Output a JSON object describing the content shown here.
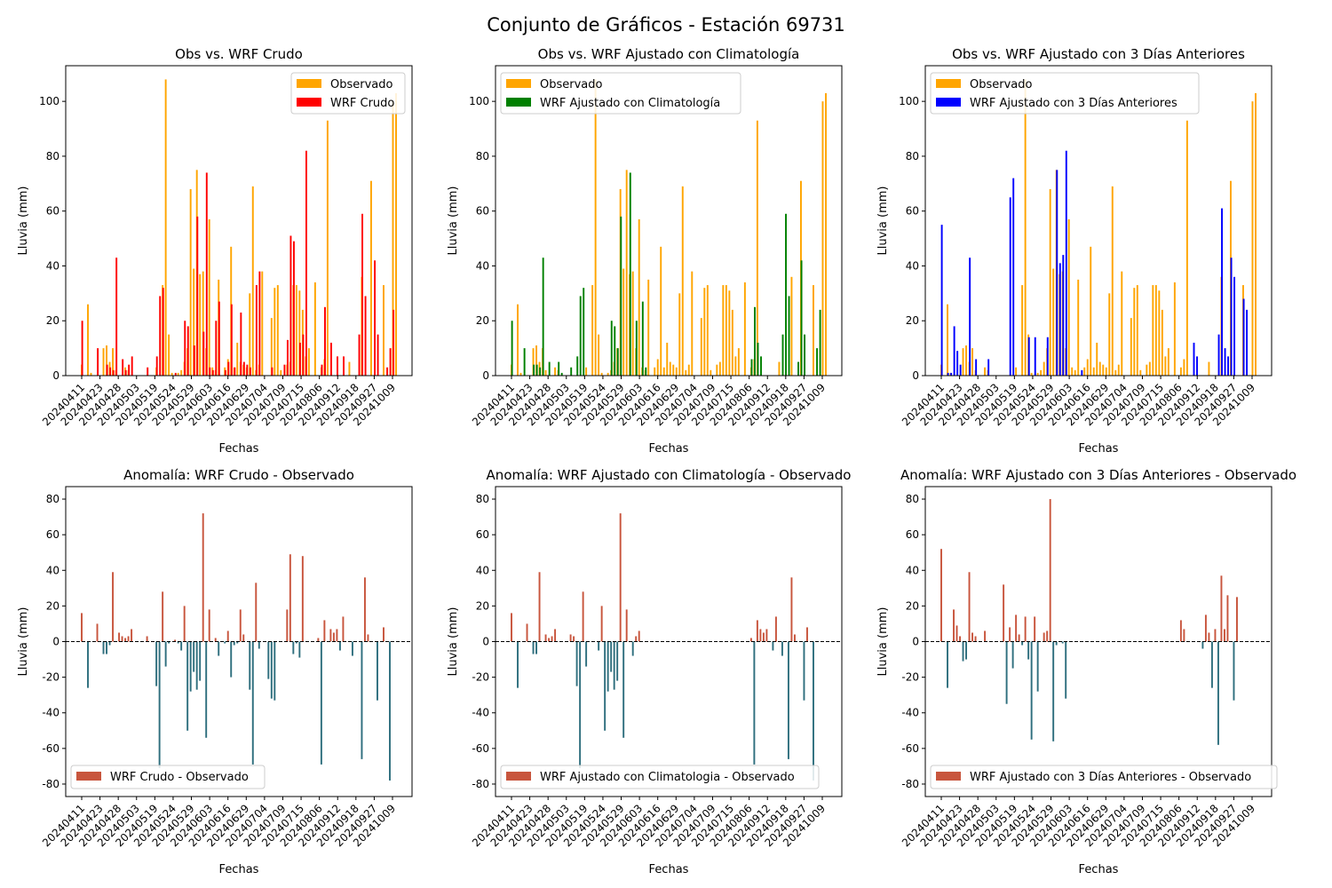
{
  "suptitle": "Conjunto de Gráficos - Estación 69731",
  "colors": {
    "observado": "#FFA500",
    "wrf_crudo": "#FF0000",
    "wrf_clima": "#008000",
    "wrf_3dias": "#0000FF",
    "anomaly_pos": "#C8553D",
    "anomaly_neg": "#2F6F7E",
    "zero_line": "#000000"
  },
  "date_ticks": [
    "20240411",
    "20240423",
    "20240428",
    "20240503",
    "20240519",
    "20240524",
    "20240529",
    "20240603",
    "20240616",
    "20240629",
    "20240704",
    "20240709",
    "20240715",
    "20240806",
    "20240912",
    "20240918",
    "20240927",
    "20241009"
  ],
  "chart_data": [
    {
      "type": "bar",
      "title": "Obs vs. WRF Crudo",
      "xlabel": "Fechas",
      "ylabel": "Lluvia (mm)",
      "ylim": [
        0,
        113
      ],
      "yticks": [
        0,
        20,
        40,
        60,
        80,
        100
      ],
      "legend": "top-right",
      "series": [
        {
          "name": "Observado",
          "color_key": "observado",
          "values": [
            4,
            0,
            26,
            1,
            0,
            0,
            0,
            10,
            11,
            5,
            10,
            2,
            0,
            0,
            3,
            2,
            0,
            0,
            0,
            0,
            0,
            0,
            0,
            0,
            3,
            0,
            33,
            108,
            15,
            1,
            0,
            1,
            2,
            5,
            10,
            68,
            39,
            75,
            37,
            38,
            10,
            57,
            3,
            2,
            35,
            0,
            3,
            6,
            47,
            3,
            12,
            5,
            4,
            3,
            30,
            69,
            2,
            4,
            38,
            0,
            0,
            21,
            32,
            33,
            2,
            0,
            4,
            5,
            33,
            33,
            31,
            24,
            7,
            10,
            0,
            34,
            0,
            3,
            6,
            93,
            0,
            0,
            0,
            0,
            0,
            0,
            5,
            0,
            0,
            0,
            36,
            0,
            0,
            71,
            0,
            0,
            0,
            33,
            0,
            0,
            100,
            103
          ]
        },
        {
          "name": "WRF Crudo",
          "color_key": "wrf_crudo",
          "values": [
            20,
            0,
            0,
            0,
            0,
            10,
            0,
            0,
            4,
            3,
            2,
            43,
            0,
            6,
            2,
            4,
            7,
            0,
            0,
            0,
            0,
            3,
            0,
            0,
            7,
            29,
            32,
            0,
            0,
            0,
            1,
            0,
            0,
            20,
            18,
            0,
            11,
            58,
            0,
            16,
            74,
            3,
            2,
            20,
            27,
            0,
            2,
            5,
            26,
            3,
            0,
            23,
            5,
            4,
            3,
            0,
            33,
            38,
            0,
            0,
            0,
            3,
            0,
            0,
            0,
            4,
            13,
            51,
            49,
            0,
            12,
            15,
            82,
            0,
            0,
            0,
            0,
            4,
            25,
            0,
            12,
            0,
            7,
            0,
            7,
            0,
            0,
            0,
            0,
            15,
            59,
            29,
            0,
            0,
            42,
            15,
            0,
            0,
            3,
            10,
            24,
            0
          ]
        }
      ]
    },
    {
      "type": "bar",
      "title": "Obs vs. WRF Ajustado con Climatología",
      "xlabel": "Fechas",
      "ylabel": "Lluvia (mm)",
      "ylim": [
        0,
        113
      ],
      "yticks": [
        0,
        20,
        40,
        60,
        80,
        100
      ],
      "legend": "top-left",
      "series": [
        {
          "name": "Observado",
          "color_key": "observado",
          "values": [
            4,
            0,
            26,
            1,
            0,
            0,
            0,
            10,
            11,
            5,
            10,
            2,
            0,
            0,
            3,
            2,
            0,
            0,
            0,
            0,
            0,
            0,
            0,
            0,
            3,
            0,
            33,
            108,
            15,
            1,
            0,
            1,
            2,
            5,
            10,
            68,
            39,
            75,
            37,
            38,
            10,
            57,
            3,
            2,
            35,
            0,
            3,
            6,
            47,
            3,
            12,
            5,
            4,
            3,
            30,
            69,
            2,
            4,
            38,
            0,
            0,
            21,
            32,
            33,
            2,
            0,
            4,
            5,
            33,
            33,
            31,
            24,
            7,
            10,
            0,
            34,
            0,
            3,
            6,
            93,
            0,
            0,
            0,
            0,
            0,
            0,
            5,
            0,
            0,
            0,
            36,
            0,
            0,
            71,
            0,
            0,
            0,
            33,
            0,
            0,
            100,
            103
          ]
        },
        {
          "name": "WRF Ajustado con Climatología",
          "color_key": "wrf_clima",
          "values": [
            20,
            0,
            0,
            0,
            10,
            0,
            0,
            4,
            4,
            3,
            43,
            0,
            5,
            0,
            0,
            5,
            1,
            0,
            0,
            3,
            0,
            7,
            29,
            32,
            0,
            0,
            0,
            0,
            0,
            0,
            0,
            0,
            20,
            18,
            10,
            58,
            0,
            0,
            74,
            0,
            20,
            0,
            27,
            3,
            0,
            0,
            0,
            0,
            0,
            0,
            0,
            0,
            0,
            0,
            0,
            0,
            0,
            0,
            0,
            0,
            0,
            0,
            0,
            0,
            0,
            0,
            0,
            0,
            0,
            0,
            0,
            0,
            0,
            0,
            0,
            0,
            0,
            6,
            25,
            12,
            7,
            0,
            0,
            0,
            0,
            0,
            0,
            15,
            59,
            29,
            0,
            0,
            5,
            42,
            15,
            0,
            0,
            0,
            10,
            24,
            0,
            0
          ]
        }
      ]
    },
    {
      "type": "bar",
      "title": "Obs vs. WRF Ajustado con 3 Días Anteriores",
      "xlabel": "Fechas",
      "ylabel": "Lluvia (mm)",
      "ylim": [
        0,
        113
      ],
      "yticks": [
        0,
        20,
        40,
        60,
        80,
        100
      ],
      "legend": "top-left",
      "series": [
        {
          "name": "Observado",
          "color_key": "observado",
          "values": [
            4,
            0,
            26,
            1,
            0,
            0,
            0,
            10,
            11,
            5,
            10,
            2,
            0,
            0,
            3,
            2,
            0,
            0,
            0,
            0,
            0,
            0,
            0,
            0,
            3,
            0,
            33,
            108,
            15,
            1,
            0,
            1,
            2,
            5,
            10,
            68,
            39,
            75,
            37,
            38,
            10,
            57,
            3,
            2,
            35,
            0,
            3,
            6,
            47,
            3,
            12,
            5,
            4,
            3,
            30,
            69,
            2,
            4,
            38,
            0,
            0,
            21,
            32,
            33,
            2,
            0,
            4,
            5,
            33,
            33,
            31,
            24,
            7,
            10,
            0,
            34,
            0,
            3,
            6,
            93,
            0,
            0,
            0,
            0,
            0,
            0,
            5,
            0,
            0,
            0,
            36,
            0,
            0,
            71,
            0,
            0,
            0,
            33,
            0,
            0,
            100,
            103
          ]
        },
        {
          "name": "WRF Ajustado con 3 Días Anteriores",
          "color_key": "wrf_3dias",
          "values": [
            55,
            0,
            1,
            1,
            18,
            9,
            4,
            0,
            0,
            43,
            0,
            6,
            0,
            0,
            0,
            6,
            0,
            0,
            0,
            0,
            0,
            0,
            65,
            72,
            0,
            0,
            0,
            0,
            14,
            0,
            14,
            0,
            0,
            0,
            14,
            0,
            0,
            75,
            41,
            44,
            82,
            0,
            0,
            0,
            0,
            2,
            0,
            0,
            0,
            0,
            0,
            0,
            0,
            0,
            0,
            0,
            0,
            0,
            0,
            0,
            0,
            0,
            0,
            0,
            0,
            0,
            0,
            0,
            0,
            0,
            0,
            0,
            0,
            0,
            0,
            0,
            0,
            0,
            0,
            0,
            0,
            12,
            7,
            0,
            0,
            0,
            0,
            0,
            0,
            15,
            61,
            10,
            7,
            43,
            36,
            0,
            0,
            28,
            24,
            0,
            0,
            0
          ]
        }
      ]
    },
    {
      "type": "bar",
      "title": "Anomalía: WRF Crudo - Observado",
      "xlabel": "Fechas",
      "ylabel": "Lluvia (mm)",
      "ylim": [
        -87,
        87
      ],
      "yticks": [
        -80,
        -60,
        -40,
        -20,
        0,
        20,
        40,
        60,
        80
      ],
      "legend": "bottom-left",
      "series": [
        {
          "name": "WRF Crudo - Observado",
          "color_key": "anomaly_pos",
          "values": [
            16,
            0,
            -26,
            0,
            0,
            10,
            0,
            -7,
            -7,
            -2,
            39,
            0,
            5,
            3,
            2,
            3,
            7,
            0,
            0,
            0,
            0,
            3,
            0,
            0,
            -25,
            -71,
            28,
            -14,
            -1,
            0,
            1,
            -1,
            -5,
            20,
            -50,
            -28,
            -17,
            -27,
            -22,
            72,
            -54,
            18,
            0,
            2,
            -8,
            0,
            -1,
            6,
            -20,
            -2,
            -1,
            18,
            4,
            0,
            -27,
            -69,
            33,
            -4,
            0,
            0,
            -21,
            -32,
            -33,
            0,
            0,
            0,
            18,
            49,
            -7,
            -1,
            -9,
            48,
            0,
            0,
            0,
            0,
            2,
            -69,
            12,
            0,
            7,
            5,
            7,
            -5,
            14,
            0,
            0,
            -8,
            0,
            0,
            -66,
            36,
            4,
            0,
            0,
            -33,
            0,
            8,
            0,
            -78,
            0,
            0
          ]
        }
      ]
    },
    {
      "type": "bar",
      "title": "Anomalía: WRF Ajustado con Climatología - Observado",
      "xlabel": "Fechas",
      "ylabel": "Lluvia (mm)",
      "ylim": [
        -87,
        87
      ],
      "yticks": [
        -80,
        -60,
        -40,
        -20,
        0,
        20,
        40,
        60,
        80
      ],
      "legend": "bottom-left",
      "series": [
        {
          "name": "WRF Ajustado con Climatologia - Observado",
          "color_key": "anomaly_pos",
          "values": [
            16,
            0,
            -26,
            0,
            0,
            10,
            0,
            -7,
            -7,
            39,
            0,
            4,
            2,
            3,
            7,
            0,
            0,
            0,
            0,
            4,
            3,
            -25,
            -71,
            28,
            -14,
            0,
            0,
            0,
            -5,
            20,
            -50,
            -28,
            -17,
            -27,
            -22,
            72,
            -54,
            18,
            0,
            -8,
            3,
            6,
            0,
            0,
            0,
            0,
            0,
            0,
            0,
            0,
            0,
            0,
            0,
            0,
            0,
            0,
            0,
            0,
            0,
            0,
            0,
            0,
            0,
            0,
            0,
            0,
            0,
            0,
            0,
            0,
            0,
            0,
            0,
            0,
            0,
            0,
            0,
            2,
            -69,
            12,
            7,
            5,
            7,
            0,
            -5,
            14,
            0,
            -8,
            0,
            -66,
            36,
            4,
            0,
            0,
            -33,
            8,
            0,
            -78,
            0,
            0,
            0,
            0
          ]
        }
      ]
    },
    {
      "type": "bar",
      "title": "Anomalía: WRF Ajustado con 3 Días Anteriores - Observado",
      "xlabel": "Fechas",
      "ylabel": "Lluvia (mm)",
      "ylim": [
        -87,
        87
      ],
      "yticks": [
        -80,
        -60,
        -40,
        -20,
        0,
        20,
        40,
        60,
        80
      ],
      "legend": "bottom-right",
      "series": [
        {
          "name": "WRF Ajustado con 3 Días Anteriores - Observado",
          "color_key": "anomaly_pos",
          "values": [
            52,
            0,
            -26,
            0,
            18,
            9,
            3,
            -11,
            -10,
            39,
            5,
            3,
            0,
            0,
            6,
            0,
            0,
            0,
            0,
            0,
            32,
            -35,
            8,
            -15,
            15,
            4,
            -2,
            14,
            -10,
            -55,
            14,
            -28,
            0,
            5,
            6,
            80,
            -56,
            -2,
            0,
            -1,
            -32,
            0,
            0,
            0,
            0,
            0,
            0,
            0,
            0,
            0,
            0,
            0,
            0,
            0,
            0,
            0,
            0,
            0,
            0,
            0,
            0,
            0,
            0,
            0,
            0,
            0,
            0,
            0,
            0,
            0,
            0,
            0,
            0,
            0,
            0,
            0,
            0,
            12,
            7,
            0,
            0,
            0,
            0,
            0,
            -4,
            15,
            5,
            -26,
            7,
            -58,
            37,
            7,
            26,
            0,
            -33,
            25,
            0,
            0,
            0,
            0,
            0,
            0
          ]
        }
      ]
    }
  ]
}
